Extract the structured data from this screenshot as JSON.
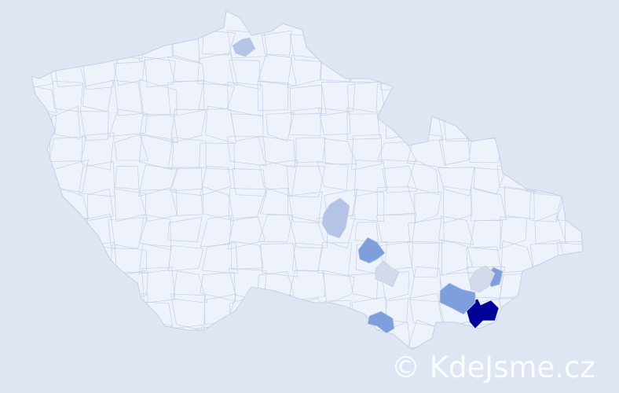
{
  "map": {
    "country_fill": "#eef2fa",
    "border_color": "#c5d0e6",
    "background": "#dde6f2",
    "level_colors": {
      "highest": "#000099",
      "high": "#7f9fdc",
      "medium": "#b4c3e6",
      "low": "#d3dbeb"
    },
    "highlighted_districts": [
      {
        "level": "highest"
      },
      {
        "level": "high"
      },
      {
        "level": "high"
      },
      {
        "level": "high"
      },
      {
        "level": "high"
      },
      {
        "level": "medium"
      },
      {
        "level": "medium"
      },
      {
        "level": "low"
      },
      {
        "level": "low"
      }
    ]
  },
  "watermark": "© KdeJsme.cz"
}
